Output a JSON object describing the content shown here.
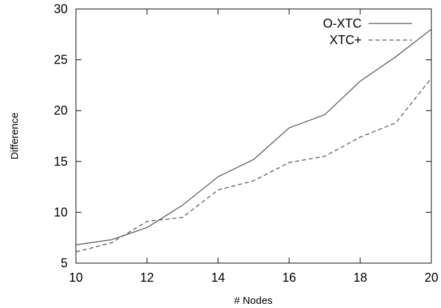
{
  "chart_data": {
    "type": "line",
    "title": "",
    "xlabel": "# Nodes",
    "ylabel": "Difference",
    "xlim": [
      10,
      20
    ],
    "ylim": [
      5,
      30
    ],
    "xticks": [
      "10",
      "12",
      "14",
      "16",
      "18",
      "20"
    ],
    "yticks": [
      "5",
      "10",
      "15",
      "20",
      "25",
      "30"
    ],
    "grid": false,
    "legend_position": "top-right",
    "x": [
      10,
      11,
      12,
      13,
      14,
      15,
      16,
      17,
      18,
      19,
      20
    ],
    "series": [
      {
        "name": "O-XTC",
        "style": "solid",
        "color": "#555555",
        "values": [
          6.8,
          7.3,
          8.5,
          10.7,
          13.5,
          15.2,
          18.3,
          19.6,
          22.9,
          25.3,
          28.0
        ]
      },
      {
        "name": "XTC+",
        "style": "dashed",
        "color": "#555555",
        "values": [
          6.1,
          7.0,
          9.1,
          9.5,
          12.2,
          13.1,
          14.9,
          15.5,
          17.4,
          18.8,
          23.2
        ]
      }
    ]
  }
}
